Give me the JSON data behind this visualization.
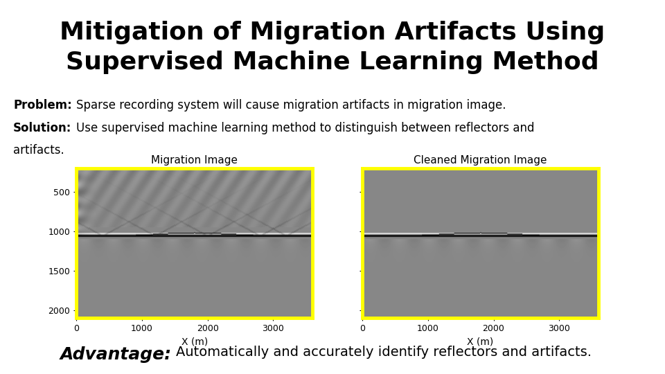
{
  "title_line1": "Mitigation of Migration Artifacts Using",
  "title_line2": "Supervised Machine Learning Method",
  "problem_bold": "Problem:",
  "problem_text": "Sparse recording system will cause migration artifacts in migration image.",
  "solution_bold": "Solution:",
  "solution_line1": "Use supervised machine learning method to distinguish between reflectors and",
  "solution_line2": "artifacts.",
  "advantage_bold": "Advantage:",
  "advantage_text": "Automatically and accurately identify reflectors and artifacts.",
  "label_left": "Migration Image",
  "label_right": "Cleaned Migration Image",
  "xlabel": "X (m)",
  "x_ticks": [
    0,
    1000,
    2000,
    3000
  ],
  "y_ticks": [
    500,
    1000,
    1500,
    2000
  ],
  "xlim": [
    0,
    3600
  ],
  "ylim_bottom": 2100,
  "ylim_top": 200,
  "background_color": "#ffffff",
  "border_color": "#ffff00",
  "title_fontsize": 26,
  "text_fontsize": 12,
  "advantage_bold_fontsize": 18,
  "advantage_text_fontsize": 14
}
